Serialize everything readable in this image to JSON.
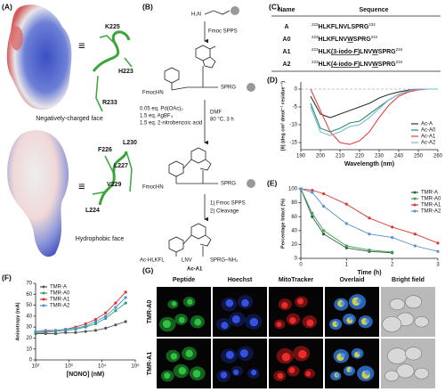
{
  "panel_a": {
    "label": "(A)",
    "equiv": "≡",
    "top_residues": [
      "K225",
      "H223",
      "R233"
    ],
    "top_caption": "Negatively-charged face",
    "bottom_residues": [
      "F226",
      "L227",
      "L230",
      "V229",
      "L224"
    ],
    "bottom_caption": "Hydrophobic face"
  },
  "panel_b": {
    "label": "(B)",
    "start": "H₂N",
    "step1": "Fmoc SPPS",
    "fmoc": "FmocHN",
    "tail": "SPRG",
    "reagents": [
      "0.05 eq. Pd(OAc)₂",
      "1.5 eq. AgBF₄",
      "1.5 eq. 2-nitrobenzoic acid"
    ],
    "conditions": [
      "DMF",
      "80 °C, 3 h"
    ],
    "step3": [
      "1) Fmoc SPPS",
      "2) Cleavage"
    ],
    "product": [
      "Ac-HLKFL",
      "LNV",
      "SPRG–NH₂"
    ],
    "product_name": "Ac-A1"
  },
  "panel_c": {
    "label": "(C)",
    "header": [
      "Name",
      "Sequence"
    ],
    "rows": [
      {
        "name": "A",
        "start": "223",
        "segments": [
          {
            "text": "HLKFLNVLSPRG"
          }
        ],
        "end": "234"
      },
      {
        "name": "A0",
        "start": "223",
        "segments": [
          {
            "text": "HLKFLNV"
          },
          {
            "text": "W",
            "underline": true
          },
          {
            "text": "SPRG"
          }
        ],
        "end": "234"
      },
      {
        "name": "A1",
        "start": "223",
        "segments": [
          {
            "text": "HLK"
          },
          {
            "text": "(3-iodo-F)",
            "underline": true
          },
          {
            "text": "LNV"
          },
          {
            "text": "W",
            "underline": true
          },
          {
            "text": "SPRG"
          }
        ],
        "end": "234"
      },
      {
        "name": "A2",
        "start": "223",
        "segments": [
          {
            "text": "HLK"
          },
          {
            "text": "(4-iodo-F)",
            "underline": true
          },
          {
            "text": "LNV"
          },
          {
            "text": "W",
            "underline": true
          },
          {
            "text": "SPRG"
          }
        ],
        "end": "234"
      }
    ]
  },
  "chart_data": [
    {
      "type": "line",
      "label": "(D)",
      "xlabel": "Wavelength (nm)",
      "ylabel": "[θ] (deg cm² dmol⁻¹ residue⁻¹)",
      "x": [
        195,
        200,
        205,
        210,
        215,
        220,
        225,
        230,
        235,
        240,
        245,
        250,
        255,
        260
      ],
      "xlim": [
        190,
        260
      ],
      "xticks": [
        190,
        200,
        210,
        220,
        230,
        240,
        250,
        260
      ],
      "ylim": [
        -17,
        2
      ],
      "yticks": [
        -15,
        -10,
        -5,
        0
      ],
      "hline": 0,
      "legend": "lower right",
      "markers": false,
      "series": [
        {
          "name": "Ac-A",
          "color": "#333333",
          "values": [
            -2,
            -7,
            -8,
            -7,
            -6,
            -5,
            -4,
            -2.5,
            -1.5,
            -0.8,
            -0.3,
            0,
            0,
            0
          ]
        },
        {
          "name": "Ac-A0",
          "color": "#2e8b74",
          "values": [
            -4,
            -11,
            -12,
            -11,
            -9.5,
            -9,
            -7,
            -5,
            -3,
            -1.5,
            -0.5,
            0,
            0,
            0
          ]
        },
        {
          "name": "Ac-A1",
          "color": "#e8423f",
          "values": [
            0,
            -6,
            -12,
            -15,
            -15.5,
            -14.5,
            -12,
            -8,
            -4.5,
            -2,
            -0.8,
            -0.2,
            0,
            0
          ]
        },
        {
          "name": "Ac-A2",
          "color": "#7ab8d9",
          "values": [
            -5,
            -12,
            -13,
            -12,
            -10.5,
            -10,
            -8,
            -5.5,
            -3,
            -1.5,
            -0.5,
            0,
            0,
            0
          ]
        }
      ]
    },
    {
      "type": "line",
      "label": "(E)",
      "xlabel": "Time (h)",
      "ylabel": "Percentage Intact (%)",
      "x": [
        0,
        0.25,
        0.5,
        1,
        1.5,
        2,
        2.5,
        3
      ],
      "xlim": [
        0,
        3
      ],
      "xticks": [
        0,
        1,
        2,
        3
      ],
      "ylim": [
        0,
        100
      ],
      "yticks": [
        0,
        20,
        40,
        60,
        80,
        100
      ],
      "legend": "upper right",
      "markers": true,
      "series": [
        {
          "name": "TMR-A",
          "color": "#2f5d3a",
          "values": [
            100,
            60,
            35,
            15,
            10,
            8,
            null,
            null
          ]
        },
        {
          "name": "TMR-A0",
          "color": "#3ea05a",
          "values": [
            100,
            65,
            40,
            18,
            12,
            9,
            null,
            null
          ]
        },
        {
          "name": "TMR-A1",
          "color": "#d93a32",
          "values": [
            100,
            98,
            93,
            78,
            58,
            45,
            35,
            22
          ]
        },
        {
          "name": "TMR-A2",
          "color": "#5b8fd0",
          "values": [
            100,
            95,
            75,
            50,
            35,
            30,
            18,
            10
          ]
        }
      ]
    },
    {
      "type": "line",
      "label": "(F)",
      "xlabel": "[NONO] (nM)",
      "ylabel": "Anisotropy (mA)",
      "xscale": "log",
      "x": [
        100,
        200,
        400,
        800,
        1600,
        3200,
        6400,
        12800,
        25600,
        51200
      ],
      "xlim": [
        100,
        100000
      ],
      "xticks": [
        {
          "value": 100,
          "label": "10²"
        },
        {
          "value": 1000,
          "label": "10³"
        },
        {
          "value": 10000,
          "label": "10⁴"
        },
        {
          "value": 100000,
          "label": "10⁵"
        }
      ],
      "ylim": [
        0,
        70
      ],
      "yticks": [
        0,
        10,
        20,
        30,
        40,
        50,
        60,
        70
      ],
      "legend": "upper left",
      "markers": true,
      "series": [
        {
          "name": "TMR-A",
          "color": "#555555",
          "values": [
            24,
            24,
            24,
            25,
            25,
            26,
            27,
            29,
            32,
            35
          ]
        },
        {
          "name": "TMR-A0",
          "color": "#2aa07a",
          "values": [
            25,
            25,
            26,
            27,
            28,
            30,
            33,
            38,
            45,
            52
          ]
        },
        {
          "name": "TMR-A1",
          "color": "#e03030",
          "values": [
            26,
            26,
            27,
            28,
            30,
            33,
            37,
            43,
            52,
            62
          ]
        },
        {
          "name": "TMR-A2",
          "color": "#4a90d9",
          "values": [
            26,
            27,
            27,
            28,
            29,
            31,
            35,
            40,
            48,
            57
          ]
        }
      ]
    }
  ],
  "panel_g": {
    "label": "(G)",
    "columns": [
      "Peptide",
      "Hoechst",
      "MitoTracker",
      "Overlaid",
      "Bright field"
    ],
    "rows": [
      "TMR-A0",
      "TMR-A1"
    ]
  }
}
